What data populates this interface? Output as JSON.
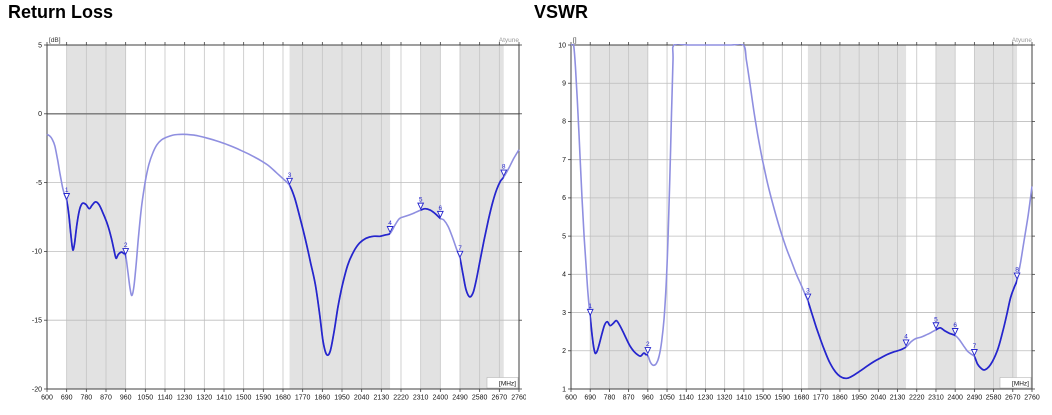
{
  "chart_data": [
    {
      "type": "line",
      "title": "Return Loss",
      "y_unit_label": "[dB]",
      "x_unit_label": "[MHz]",
      "watermark": "Atyune",
      "xlim": [
        600,
        2760
      ],
      "ylim": [
        -20,
        5
      ],
      "x_ticks": [
        600,
        690,
        780,
        870,
        960,
        1050,
        1140,
        1230,
        1320,
        1410,
        1500,
        1590,
        1680,
        1770,
        1860,
        1950,
        2040,
        2130,
        2220,
        2310,
        2400,
        2490,
        2580,
        2670,
        2760
      ],
      "y_ticks": [
        5,
        0,
        -5,
        -10,
        -15,
        -20
      ],
      "emphasize_y": 0,
      "grid": true,
      "highlight_bands_mhz": [
        [
          690,
          960
        ],
        [
          1710,
          2170
        ],
        [
          2310,
          2400
        ],
        [
          2490,
          2690
        ]
      ],
      "colors": {
        "in_band": "#2525cd",
        "out_of_band": "#8f8fe0",
        "band_fill": "#e2e2e2",
        "grid": "#c4c4c4",
        "frame": "#3f3f3f",
        "watermark": "#999999"
      },
      "markers": [
        {
          "n": 1,
          "x": 690,
          "y": -6.3
        },
        {
          "n": 2,
          "x": 960,
          "y": -10.3
        },
        {
          "n": 3,
          "x": 1710,
          "y": -5.2
        },
        {
          "n": 4,
          "x": 2170,
          "y": -8.7
        },
        {
          "n": 5,
          "x": 2310,
          "y": -7.0
        },
        {
          "n": 6,
          "x": 2400,
          "y": -7.6
        },
        {
          "n": 7,
          "x": 2490,
          "y": -10.5
        },
        {
          "n": 8,
          "x": 2690,
          "y": -4.6
        }
      ],
      "series": [
        {
          "points": [
            [
              600,
              -1.5
            ],
            [
              612,
              -1.6
            ],
            [
              624,
              -1.85
            ],
            [
              636,
              -2.35
            ],
            [
              648,
              -3.3
            ],
            [
              660,
              -4.4
            ],
            [
              672,
              -5.4
            ],
            [
              681,
              -5.9
            ],
            [
              690,
              -6.3
            ],
            [
              699,
              -7.2
            ],
            [
              708,
              -8.6
            ],
            [
              715,
              -9.6
            ],
            [
              720,
              -9.9
            ],
            [
              727,
              -9.3
            ],
            [
              738,
              -7.9
            ],
            [
              750,
              -6.9
            ],
            [
              763,
              -6.5
            ],
            [
              779,
              -6.6
            ],
            [
              793,
              -6.9
            ],
            [
              806,
              -6.65
            ],
            [
              822,
              -6.4
            ],
            [
              838,
              -6.6
            ],
            [
              856,
              -7.2
            ],
            [
              876,
              -8.0
            ],
            [
              894,
              -9.0
            ],
            [
              908,
              -10.0
            ],
            [
              916,
              -10.5
            ],
            [
              927,
              -10.2
            ],
            [
              941,
              -10.05
            ],
            [
              951,
              -10.15
            ],
            [
              960,
              -10.3
            ],
            [
              971,
              -11.6
            ],
            [
              981,
              -12.8
            ],
            [
              989,
              -13.2
            ],
            [
              998,
              -12.5
            ],
            [
              1008,
              -10.9
            ],
            [
              1020,
              -8.7
            ],
            [
              1034,
              -6.6
            ],
            [
              1050,
              -4.9
            ],
            [
              1066,
              -3.7
            ],
            [
              1084,
              -2.85
            ],
            [
              1103,
              -2.25
            ],
            [
              1124,
              -1.9
            ],
            [
              1148,
              -1.7
            ],
            [
              1176,
              -1.55
            ],
            [
              1205,
              -1.5
            ],
            [
              1240,
              -1.5
            ],
            [
              1272,
              -1.55
            ],
            [
              1304,
              -1.65
            ],
            [
              1336,
              -1.78
            ],
            [
              1372,
              -1.95
            ],
            [
              1410,
              -2.15
            ],
            [
              1450,
              -2.4
            ],
            [
              1490,
              -2.68
            ],
            [
              1530,
              -2.98
            ],
            [
              1570,
              -3.32
            ],
            [
              1610,
              -3.72
            ],
            [
              1648,
              -4.25
            ],
            [
              1680,
              -4.72
            ],
            [
              1710,
              -5.2
            ],
            [
              1733,
              -6.1
            ],
            [
              1757,
              -7.5
            ],
            [
              1782,
              -9.1
            ],
            [
              1806,
              -10.8
            ],
            [
              1828,
              -12.4
            ],
            [
              1848,
              -14.6
            ],
            [
              1864,
              -16.6
            ],
            [
              1880,
              -17.5
            ],
            [
              1896,
              -17.25
            ],
            [
              1913,
              -15.9
            ],
            [
              1931,
              -14.1
            ],
            [
              1951,
              -12.5
            ],
            [
              1976,
              -11.0
            ],
            [
              2002,
              -10.05
            ],
            [
              2030,
              -9.4
            ],
            [
              2060,
              -9.05
            ],
            [
              2092,
              -8.9
            ],
            [
              2124,
              -8.9
            ],
            [
              2148,
              -8.8
            ],
            [
              2170,
              -8.7
            ],
            [
              2194,
              -8.05
            ],
            [
              2214,
              -7.6
            ],
            [
              2240,
              -7.45
            ],
            [
              2266,
              -7.3
            ],
            [
              2288,
              -7.15
            ],
            [
              2310,
              -7.0
            ],
            [
              2330,
              -6.9
            ],
            [
              2354,
              -7.0
            ],
            [
              2376,
              -7.25
            ],
            [
              2400,
              -7.6
            ],
            [
              2416,
              -7.72
            ],
            [
              2436,
              -8.2
            ],
            [
              2456,
              -9.0
            ],
            [
              2476,
              -9.9
            ],
            [
              2490,
              -10.5
            ],
            [
              2504,
              -11.7
            ],
            [
              2518,
              -12.8
            ],
            [
              2534,
              -13.3
            ],
            [
              2550,
              -13.0
            ],
            [
              2564,
              -12.1
            ],
            [
              2580,
              -10.8
            ],
            [
              2600,
              -9.2
            ],
            [
              2620,
              -7.7
            ],
            [
              2640,
              -6.4
            ],
            [
              2658,
              -5.5
            ],
            [
              2675,
              -4.9
            ],
            [
              2690,
              -4.6
            ],
            [
              2712,
              -4.0
            ],
            [
              2734,
              -3.3
            ],
            [
              2760,
              -2.6
            ]
          ]
        }
      ]
    },
    {
      "type": "line",
      "title": "VSWR",
      "y_unit_label": "[]",
      "x_unit_label": "[MHz]",
      "watermark": "Atyune",
      "xlim": [
        600,
        2760
      ],
      "ylim": [
        1,
        10
      ],
      "x_ticks": [
        600,
        690,
        780,
        870,
        960,
        1050,
        1140,
        1230,
        1320,
        1410,
        1500,
        1590,
        1680,
        1770,
        1860,
        1950,
        2040,
        2130,
        2220,
        2310,
        2400,
        2490,
        2580,
        2670,
        2760
      ],
      "y_ticks": [
        10,
        9,
        8,
        7,
        6,
        5,
        4,
        3,
        2,
        1
      ],
      "emphasize_y": null,
      "grid": true,
      "highlight_bands_mhz": [
        [
          690,
          960
        ],
        [
          1710,
          2170
        ],
        [
          2310,
          2400
        ],
        [
          2490,
          2690
        ]
      ],
      "colors": {
        "in_band": "#2525cd",
        "out_of_band": "#8f8fe0",
        "band_fill": "#e2e2e2",
        "grid": "#c4c4c4",
        "frame": "#3f3f3f",
        "watermark": "#999999"
      },
      "markers": [
        {
          "n": 1,
          "x": 690,
          "y": 2.9
        },
        {
          "n": 2,
          "x": 960,
          "y": 1.9
        },
        {
          "n": 3,
          "x": 1710,
          "y": 3.3
        },
        {
          "n": 4,
          "x": 2170,
          "y": 2.1
        },
        {
          "n": 5,
          "x": 2310,
          "y": 2.55
        },
        {
          "n": 6,
          "x": 2400,
          "y": 2.4
        },
        {
          "n": 7,
          "x": 2490,
          "y": 1.85
        },
        {
          "n": 8,
          "x": 2690,
          "y": 3.85
        }
      ],
      "series": [
        {
          "points": [
            [
              600,
              10
            ],
            [
              612,
              10
            ],
            [
              621,
              9.4
            ],
            [
              632,
              8.3
            ],
            [
              642,
              7.1
            ],
            [
              652,
              5.95
            ],
            [
              662,
              4.95
            ],
            [
              672,
              4.1
            ],
            [
              681,
              3.4
            ],
            [
              690,
              2.9
            ],
            [
              701,
              2.3
            ],
            [
              711,
              1.97
            ],
            [
              719,
              1.95
            ],
            [
              730,
              2.12
            ],
            [
              744,
              2.42
            ],
            [
              757,
              2.67
            ],
            [
              770,
              2.76
            ],
            [
              783,
              2.66
            ],
            [
              797,
              2.71
            ],
            [
              812,
              2.79
            ],
            [
              826,
              2.69
            ],
            [
              841,
              2.53
            ],
            [
              858,
              2.33
            ],
            [
              876,
              2.13
            ],
            [
              894,
              1.99
            ],
            [
              911,
              1.9
            ],
            [
              926,
              1.86
            ],
            [
              941,
              1.94
            ],
            [
              951,
              1.9
            ],
            [
              960,
              1.88
            ],
            [
              972,
              1.7
            ],
            [
              986,
              1.62
            ],
            [
              1000,
              1.67
            ],
            [
              1013,
              1.86
            ],
            [
              1025,
              2.25
            ],
            [
              1036,
              2.85
            ],
            [
              1046,
              3.75
            ],
            [
              1055,
              5.0
            ],
            [
              1063,
              6.5
            ],
            [
              1071,
              8.2
            ],
            [
              1078,
              9.6
            ],
            [
              1083,
              10
            ],
            [
              1150,
              10
            ],
            [
              1250,
              10
            ],
            [
              1350,
              10
            ],
            [
              1408,
              10
            ],
            [
              1422,
              9.6
            ],
            [
              1438,
              9.0
            ],
            [
              1456,
              8.3
            ],
            [
              1475,
              7.65
            ],
            [
              1495,
              7.05
            ],
            [
              1516,
              6.5
            ],
            [
              1538,
              6.0
            ],
            [
              1560,
              5.55
            ],
            [
              1584,
              5.1
            ],
            [
              1608,
              4.7
            ],
            [
              1632,
              4.35
            ],
            [
              1656,
              4.0
            ],
            [
              1680,
              3.7
            ],
            [
              1710,
              3.3
            ],
            [
              1730,
              2.95
            ],
            [
              1750,
              2.6
            ],
            [
              1770,
              2.28
            ],
            [
              1790,
              1.98
            ],
            [
              1810,
              1.72
            ],
            [
              1830,
              1.52
            ],
            [
              1850,
              1.38
            ],
            [
              1870,
              1.3
            ],
            [
              1892,
              1.28
            ],
            [
              1912,
              1.32
            ],
            [
              1936,
              1.4
            ],
            [
              1962,
              1.5
            ],
            [
              1990,
              1.61
            ],
            [
              2020,
              1.72
            ],
            [
              2050,
              1.81
            ],
            [
              2080,
              1.9
            ],
            [
              2112,
              1.97
            ],
            [
              2142,
              2.02
            ],
            [
              2170,
              2.1
            ],
            [
              2194,
              2.24
            ],
            [
              2216,
              2.32
            ],
            [
              2242,
              2.36
            ],
            [
              2266,
              2.42
            ],
            [
              2288,
              2.48
            ],
            [
              2310,
              2.55
            ],
            [
              2330,
              2.6
            ],
            [
              2352,
              2.52
            ],
            [
              2376,
              2.45
            ],
            [
              2400,
              2.4
            ],
            [
              2418,
              2.3
            ],
            [
              2438,
              2.14
            ],
            [
              2458,
              1.99
            ],
            [
              2476,
              1.91
            ],
            [
              2490,
              1.85
            ],
            [
              2504,
              1.66
            ],
            [
              2518,
              1.56
            ],
            [
              2534,
              1.5
            ],
            [
              2550,
              1.54
            ],
            [
              2566,
              1.64
            ],
            [
              2582,
              1.8
            ],
            [
              2602,
              2.08
            ],
            [
              2622,
              2.48
            ],
            [
              2642,
              2.95
            ],
            [
              2660,
              3.4
            ],
            [
              2676,
              3.65
            ],
            [
              2690,
              3.85
            ],
            [
              2706,
              4.3
            ],
            [
              2722,
              4.85
            ],
            [
              2742,
              5.55
            ],
            [
              2760,
              6.3
            ]
          ]
        }
      ]
    }
  ]
}
